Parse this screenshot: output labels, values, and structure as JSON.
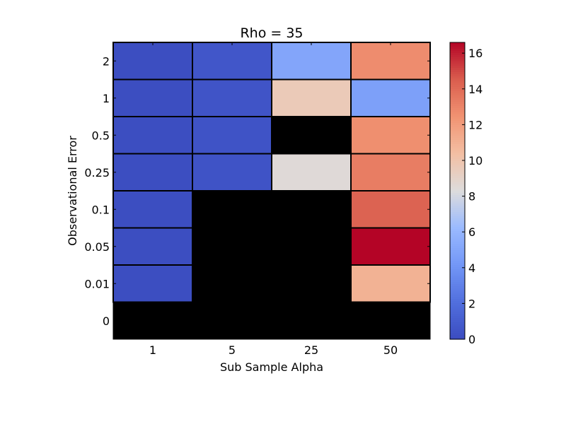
{
  "chart_data": {
    "type": "heatmap",
    "title": "Rho = 35",
    "xlabel": "Sub Sample Alpha",
    "ylabel": "Observational Error",
    "x_categories": [
      "1",
      "5",
      "25",
      "50"
    ],
    "y_categories": [
      "2",
      "1",
      "0.5",
      "0.25",
      "0.1",
      "0.05",
      "0.01",
      "0"
    ],
    "values": [
      [
        0.1,
        0.6,
        5.0,
        12.7
      ],
      [
        0.1,
        0.5,
        9.6,
        4.7
      ],
      [
        0.1,
        0.4,
        null,
        12.6
      ],
      [
        0.1,
        0.4,
        8.5,
        13.3
      ],
      [
        0.1,
        null,
        null,
        14.3
      ],
      [
        0.1,
        null,
        null,
        16.6
      ],
      [
        0.1,
        null,
        null,
        11.0
      ],
      [
        null,
        null,
        null,
        null
      ]
    ],
    "missing_color": "#000000",
    "colormap": "coolwarm",
    "vmin": 0,
    "vmax": 16.6,
    "colorbar_ticks": [
      "0",
      "2",
      "4",
      "6",
      "8",
      "10",
      "12",
      "14",
      "16"
    ],
    "grid": false
  }
}
